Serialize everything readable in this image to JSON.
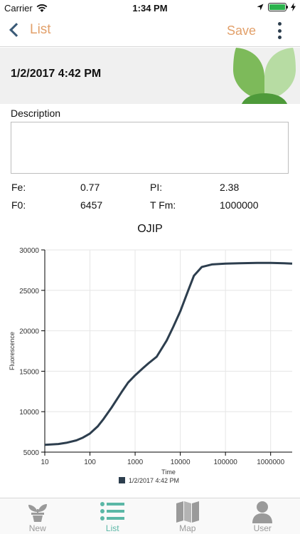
{
  "status_bar": {
    "carrier": "Carrier",
    "time": "1:34 PM"
  },
  "nav": {
    "back_label": "List",
    "save_label": "Save"
  },
  "header": {
    "date": "1/2/2017 4:42 PM"
  },
  "description": {
    "label": "Description",
    "value": ""
  },
  "metrics": [
    {
      "label": "Fe:",
      "value": "0.77"
    },
    {
      "label": "PI:",
      "value": "2.38"
    },
    {
      "label": "F0:",
      "value": "6457"
    },
    {
      "label": "T Fm:",
      "value": "1000000"
    }
  ],
  "chart_data": {
    "type": "line",
    "title": "OJIP",
    "xlabel": "Time",
    "ylabel": "Fluorescence",
    "x_scale": "log",
    "xlim": [
      10,
      3000000
    ],
    "ylim": [
      5000,
      30000
    ],
    "x_ticks": [
      "10",
      "100",
      "1000",
      "10000",
      "100000",
      "1000000"
    ],
    "y_ticks": [
      "5000",
      "10000",
      "15000",
      "20000",
      "25000",
      "30000"
    ],
    "grid": true,
    "legend": "bottom-center",
    "series": [
      {
        "name": "1/2/2017 4:42 PM",
        "color": "#2d3e4e",
        "x": [
          10,
          20,
          30,
          50,
          70,
          100,
          150,
          200,
          300,
          500,
          700,
          1000,
          1500,
          2000,
          3000,
          5000,
          7000,
          10000,
          15000,
          20000,
          30000,
          50000,
          100000,
          200000,
          500000,
          1000000,
          2000000,
          3000000
        ],
        "y": [
          5900,
          6000,
          6150,
          6450,
          6800,
          7300,
          8200,
          9100,
          10500,
          12400,
          13600,
          14500,
          15400,
          16000,
          16800,
          18800,
          20500,
          22400,
          25000,
          26800,
          27900,
          28200,
          28300,
          28350,
          28400,
          28400,
          28350,
          28300
        ]
      }
    ]
  },
  "tabs": [
    {
      "label": "New",
      "icon": "plant-pot-icon",
      "active": false
    },
    {
      "label": "List",
      "icon": "list-icon",
      "active": true
    },
    {
      "label": "Map",
      "icon": "map-icon",
      "active": false
    },
    {
      "label": "User",
      "icon": "user-icon",
      "active": false
    }
  ],
  "colors": {
    "accent": "#e2a06a",
    "tab_active": "#5bb7a6",
    "series": "#2d3e4e",
    "leaf_dark": "#7dba5a",
    "leaf_light": "#b7dca3",
    "stem": "#4e9a3a"
  }
}
